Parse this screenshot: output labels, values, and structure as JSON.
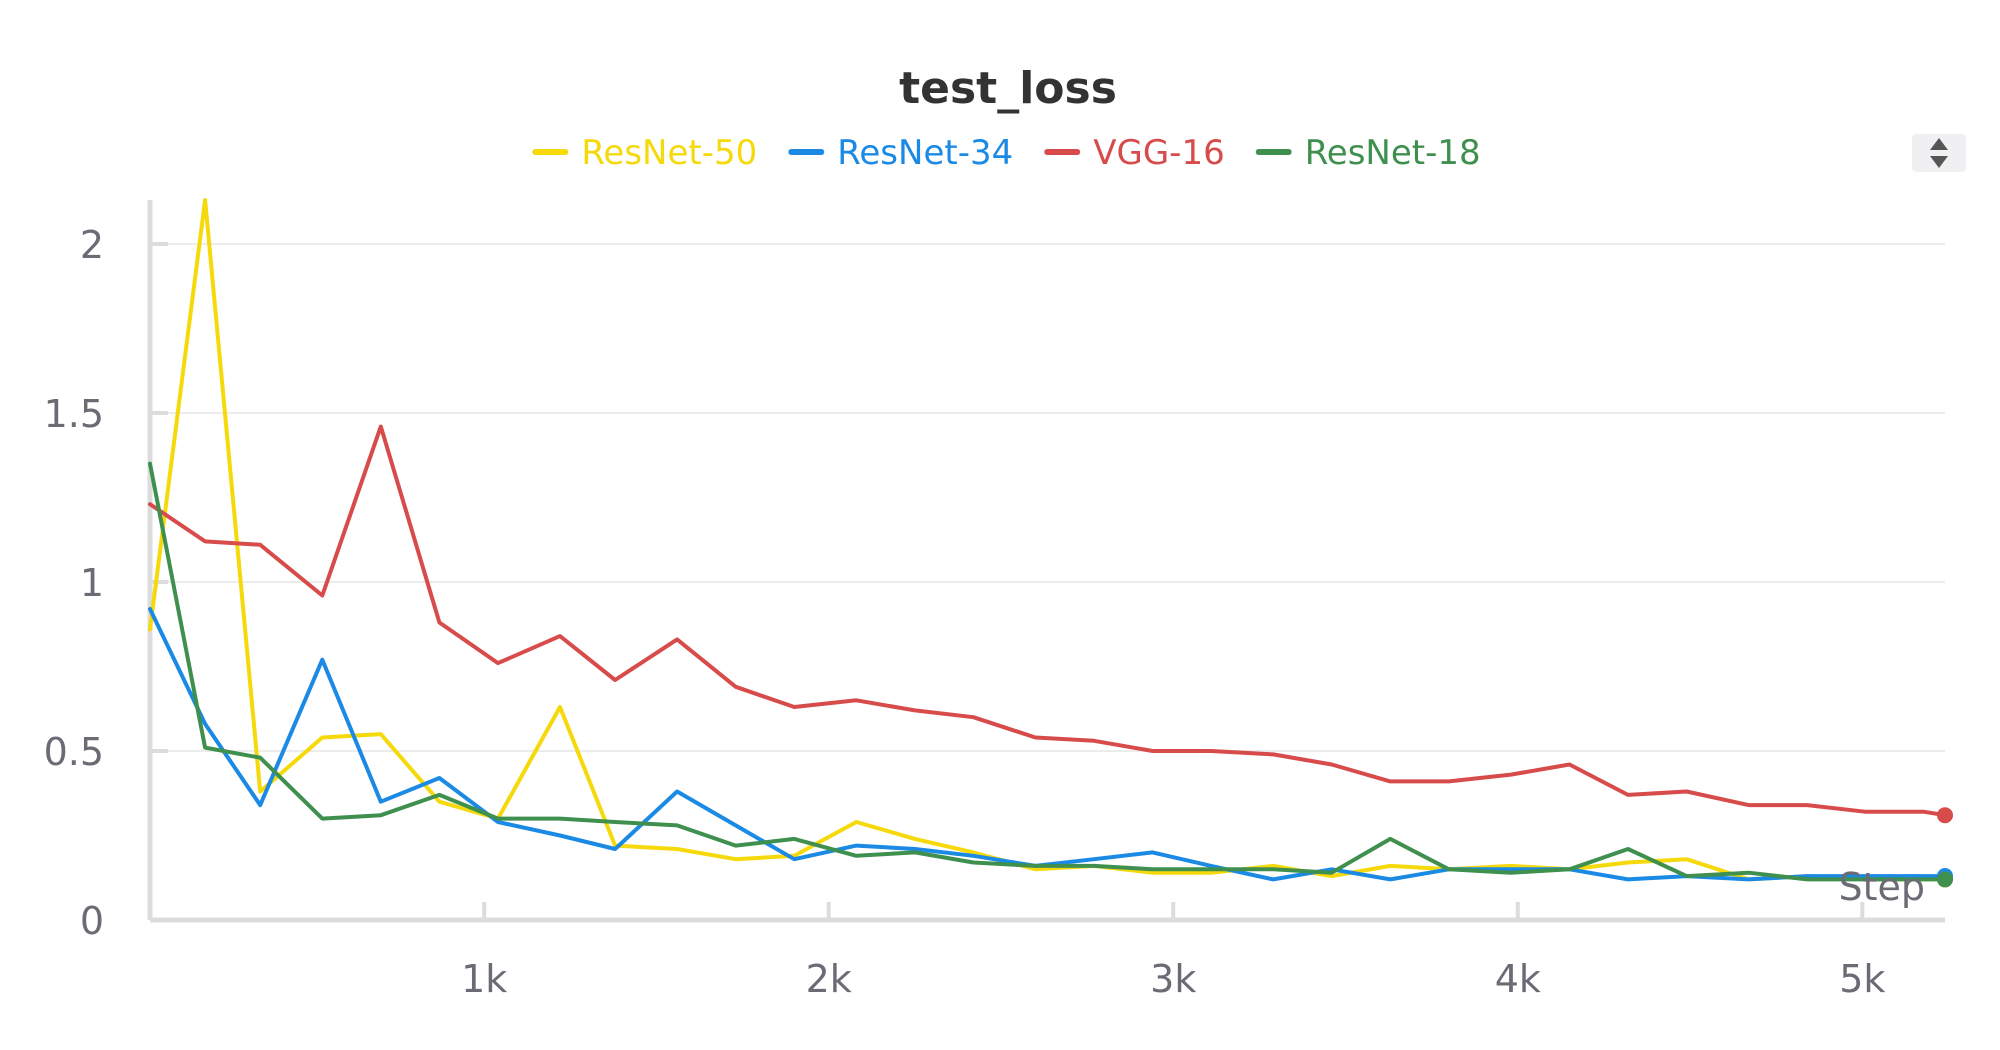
{
  "chart_data": {
    "type": "line",
    "title": "test_loss",
    "xlabel": "Step",
    "ylabel": "",
    "xlim": [
      30,
      5240
    ],
    "ylim": [
      0,
      2.13
    ],
    "grid": true,
    "legend_position": "top-center",
    "x_ticks": [
      {
        "value": 1000,
        "label": "1k"
      },
      {
        "value": 2000,
        "label": "2k"
      },
      {
        "value": 3000,
        "label": "3k"
      },
      {
        "value": 4000,
        "label": "4k"
      },
      {
        "value": 5000,
        "label": "5k"
      }
    ],
    "y_ticks": [
      {
        "value": 0,
        "label": "0"
      },
      {
        "value": 0.5,
        "label": "0.5"
      },
      {
        "value": 1,
        "label": "1"
      },
      {
        "value": 1.5,
        "label": "1.5"
      },
      {
        "value": 2,
        "label": "2"
      }
    ],
    "series": [
      {
        "name": "ResNet-50",
        "color": "#f5d90a",
        "x": [
          30,
          190,
          350,
          530,
          700,
          870,
          1040,
          1220,
          1380,
          1560,
          1730,
          1900,
          2080,
          2250,
          2420,
          2600,
          2770,
          2940,
          3110,
          3290,
          3460,
          3630,
          3800,
          3980,
          4150,
          4320,
          4490,
          4670,
          4840,
          5010,
          5180,
          5240
        ],
        "values": [
          0.86,
          2.13,
          0.38,
          0.54,
          0.55,
          0.35,
          0.3,
          0.63,
          0.22,
          0.21,
          0.18,
          0.19,
          0.29,
          0.24,
          0.2,
          0.15,
          0.16,
          0.14,
          0.14,
          0.16,
          0.13,
          0.16,
          0.15,
          0.16,
          0.15,
          0.17,
          0.18,
          0.12,
          0.13,
          0.12,
          0.12,
          0.12
        ]
      },
      {
        "name": "ResNet-34",
        "color": "#1a8ae5",
        "x": [
          30,
          190,
          350,
          530,
          700,
          870,
          1040,
          1220,
          1380,
          1560,
          1730,
          1900,
          2080,
          2250,
          2420,
          2600,
          2770,
          2940,
          3110,
          3290,
          3460,
          3630,
          3800,
          3980,
          4150,
          4320,
          4490,
          4670,
          4840,
          5010,
          5180,
          5240
        ],
        "values": [
          0.92,
          0.58,
          0.34,
          0.77,
          0.35,
          0.42,
          0.29,
          0.25,
          0.21,
          0.38,
          0.28,
          0.18,
          0.22,
          0.21,
          0.19,
          0.16,
          0.18,
          0.2,
          0.16,
          0.12,
          0.15,
          0.12,
          0.15,
          0.15,
          0.15,
          0.12,
          0.13,
          0.12,
          0.13,
          0.13,
          0.13,
          0.13
        ]
      },
      {
        "name": "VGG-16",
        "color": "#d84b4b",
        "x": [
          30,
          190,
          350,
          530,
          700,
          870,
          1040,
          1220,
          1380,
          1560,
          1730,
          1900,
          2080,
          2250,
          2420,
          2600,
          2770,
          2940,
          3110,
          3290,
          3460,
          3630,
          3800,
          3980,
          4150,
          4320,
          4490,
          4670,
          4840,
          5010,
          5180,
          5240
        ],
        "values": [
          1.23,
          1.12,
          1.11,
          0.96,
          1.46,
          0.88,
          0.76,
          0.84,
          0.71,
          0.83,
          0.69,
          0.63,
          0.65,
          0.62,
          0.6,
          0.54,
          0.53,
          0.5,
          0.5,
          0.49,
          0.46,
          0.41,
          0.41,
          0.43,
          0.46,
          0.37,
          0.38,
          0.34,
          0.34,
          0.32,
          0.32,
          0.31
        ]
      },
      {
        "name": "ResNet-18",
        "color": "#3f8f4f",
        "x": [
          30,
          190,
          350,
          530,
          700,
          870,
          1040,
          1220,
          1380,
          1560,
          1730,
          1900,
          2080,
          2250,
          2420,
          2600,
          2770,
          2940,
          3110,
          3290,
          3460,
          3630,
          3800,
          3980,
          4150,
          4320,
          4490,
          4670,
          4840,
          5010,
          5180,
          5240
        ],
        "values": [
          1.35,
          0.51,
          0.48,
          0.3,
          0.31,
          0.37,
          0.3,
          0.3,
          0.29,
          0.28,
          0.22,
          0.24,
          0.19,
          0.2,
          0.17,
          0.16,
          0.16,
          0.15,
          0.15,
          0.15,
          0.14,
          0.24,
          0.15,
          0.14,
          0.15,
          0.21,
          0.13,
          0.14,
          0.12,
          0.12,
          0.12,
          0.12
        ]
      }
    ]
  }
}
